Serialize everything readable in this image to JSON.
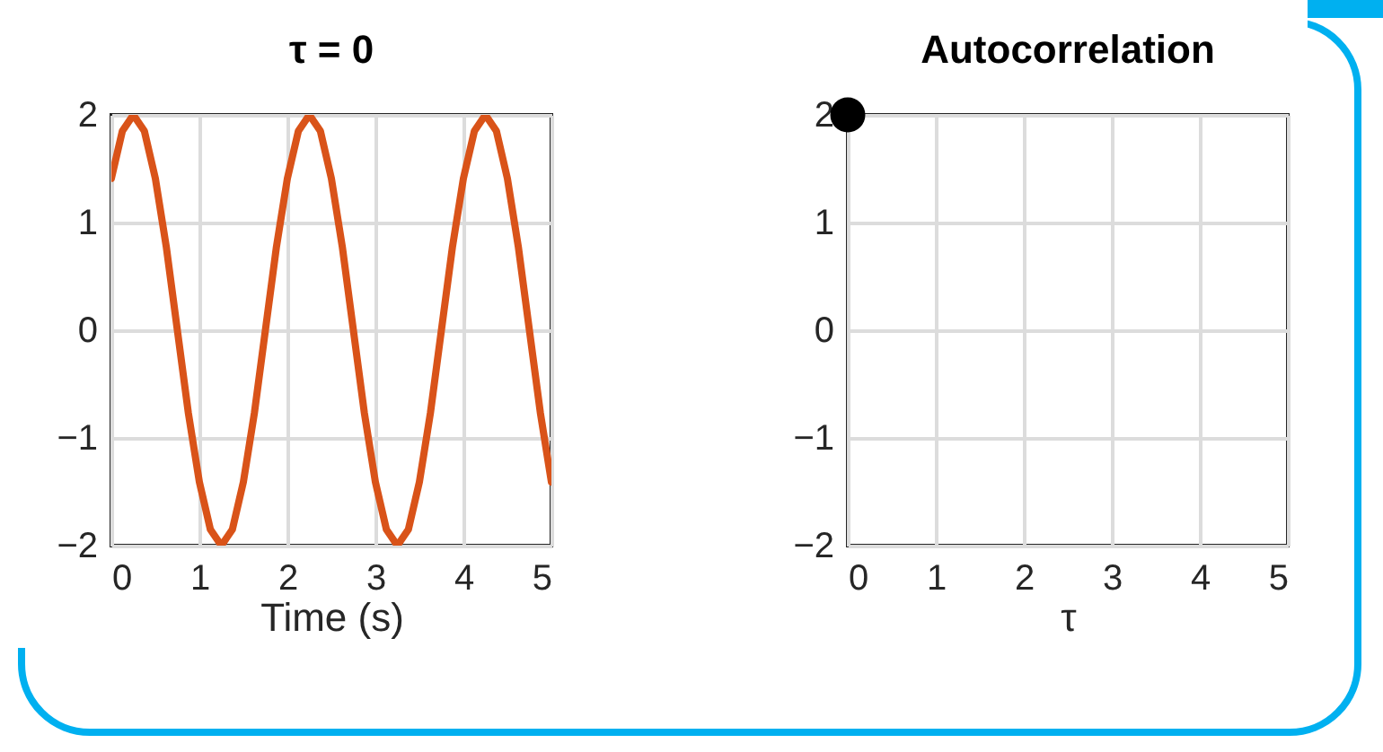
{
  "chart_data": [
    {
      "type": "line",
      "title": "τ = 0",
      "xlabel": "Time (s)",
      "xlim": [
        0,
        5
      ],
      "xticks": [
        0,
        1,
        2,
        3,
        4,
        5
      ],
      "ylim": [
        -2,
        2
      ],
      "yticks": [
        -2,
        -1,
        0,
        1,
        2
      ],
      "grid": true,
      "series": [
        {
          "color": "#d95319",
          "x": [
            0,
            0.125,
            0.25,
            0.375,
            0.5,
            0.625,
            0.75,
            0.875,
            1,
            1.125,
            1.25,
            1.375,
            1.5,
            1.625,
            1.75,
            1.875,
            2,
            2.125,
            2.25,
            2.375,
            2.5,
            2.625,
            2.75,
            2.875,
            3,
            3.125,
            3.25,
            3.375,
            3.5,
            3.625,
            3.75,
            3.875,
            4,
            4.125,
            4.25,
            4.375,
            4.5,
            4.625,
            4.75,
            4.875,
            5
          ],
          "values": [
            1.41,
            1.85,
            2,
            1.85,
            1.41,
            0.77,
            0,
            -0.77,
            -1.41,
            -1.85,
            -2,
            -1.85,
            -1.41,
            -0.77,
            0,
            0.77,
            1.41,
            1.85,
            2,
            1.85,
            1.41,
            0.77,
            0,
            -0.77,
            -1.41,
            -1.85,
            -2,
            -1.85,
            -1.41,
            -0.77,
            0,
            0.77,
            1.41,
            1.85,
            2,
            1.85,
            1.41,
            0.77,
            0,
            -0.77,
            -1.41
          ]
        }
      ]
    },
    {
      "type": "scatter",
      "title": "Autocorrelation",
      "xlabel": "τ",
      "xlim": [
        0,
        5
      ],
      "xticks": [
        0,
        1,
        2,
        3,
        4,
        5
      ],
      "ylim": [
        -2,
        2
      ],
      "yticks": [
        -2,
        -1,
        0,
        1,
        2
      ],
      "grid": true,
      "marker": "circle",
      "series": [
        {
          "color": "#000000",
          "x": [
            0
          ],
          "values": [
            2
          ]
        }
      ]
    }
  ]
}
